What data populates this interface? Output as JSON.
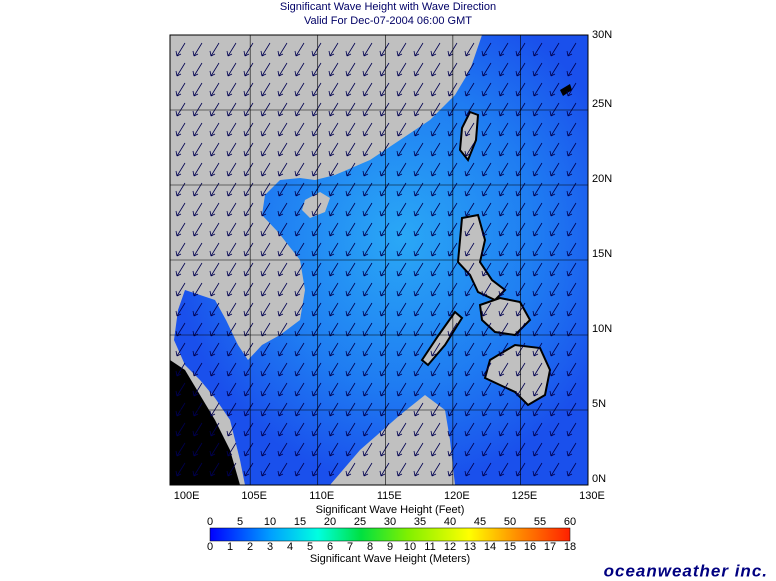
{
  "header": {
    "title": "Significant Wave Height with Wave Direction",
    "subtitle": "Valid For Dec-07-2004 06:00 GMT"
  },
  "map": {
    "latitude_labels": [
      "30N",
      "25N",
      "20N",
      "15N",
      "10N",
      "5N",
      "0N"
    ],
    "longitude_labels": [
      "100E",
      "105E",
      "110E",
      "115E",
      "120E",
      "125E",
      "130E"
    ]
  },
  "legend": {
    "feet_ticks": [
      0,
      5,
      10,
      15,
      20,
      25,
      30,
      35,
      40,
      45,
      50,
      55,
      60
    ],
    "feet_title": "Significant Wave Height (Feet)",
    "meters_ticks": [
      0,
      1,
      2,
      3,
      4,
      5,
      6,
      7,
      8,
      9,
      10,
      11,
      12,
      13,
      14,
      15,
      16,
      17,
      18
    ],
    "meters_title": "Significant Wave Height (Meters)"
  },
  "brand": "oceanweather inc."
}
